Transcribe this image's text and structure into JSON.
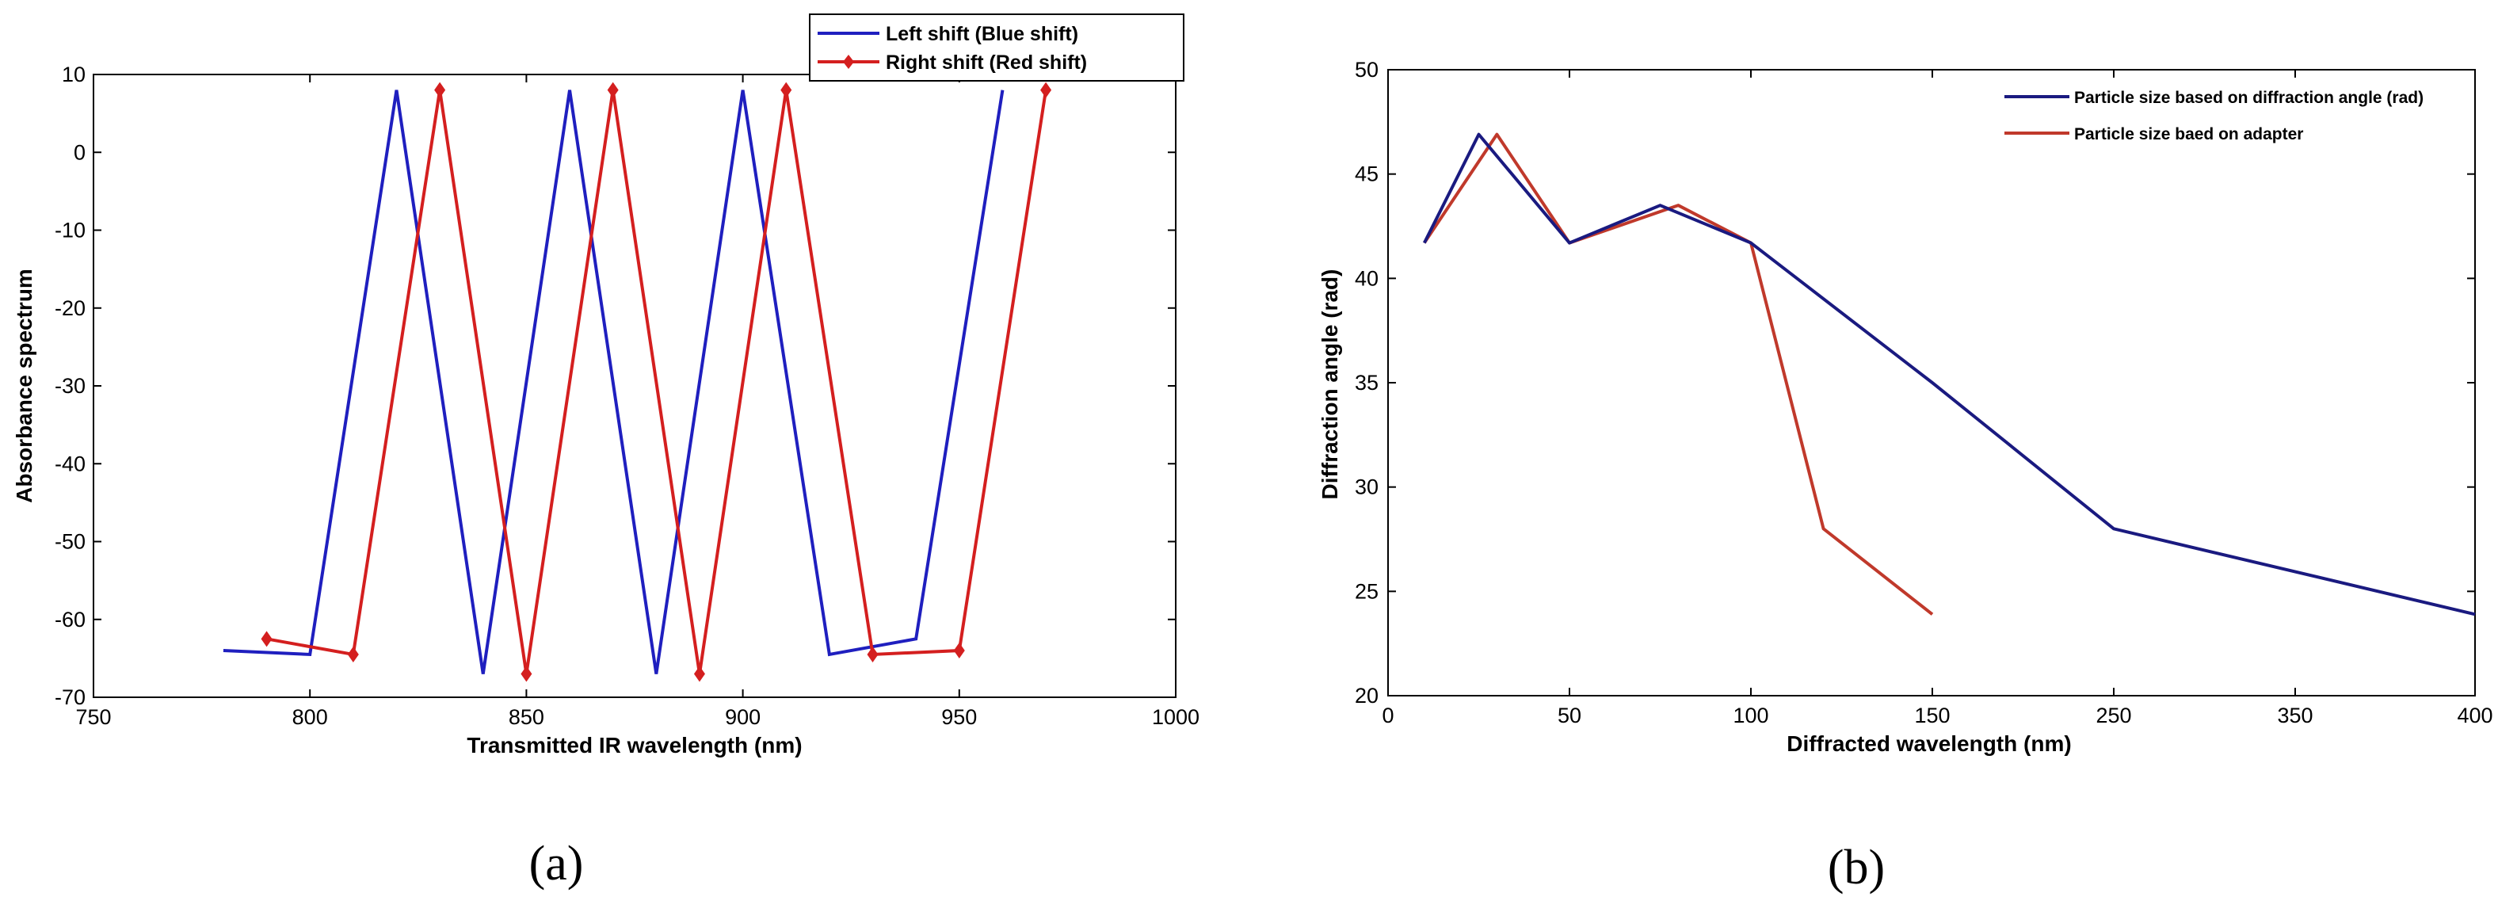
{
  "panels": {
    "a": "(a)",
    "b": "(b)"
  },
  "colors": {
    "blue": "#1f1fbf",
    "red": "#d41f1f",
    "navy": "#1a1a80",
    "brick": "#c0392b"
  },
  "chart_data": [
    {
      "type": "line",
      "title": "",
      "xlabel": "Transmitted IR wavelength (nm)",
      "ylabel": "Absorbance spectrum",
      "xlim": [
        750,
        1000
      ],
      "ylim": [
        -70,
        10
      ],
      "xticks": [
        750,
        800,
        850,
        900,
        950,
        1000
      ],
      "yticks": [
        -70,
        -60,
        -50,
        -40,
        -30,
        -20,
        -10,
        0,
        10
      ],
      "legend": "top-right",
      "series": [
        {
          "name": "Left shift (Blue shift)",
          "color": "#1f1fbf",
          "marker": "none",
          "x": [
            780,
            800,
            820,
            840,
            860,
            880,
            900,
            920,
            940,
            960
          ],
          "y": [
            -64,
            -64.5,
            8,
            -67,
            8,
            -67,
            8,
            -64.5,
            -62.5,
            8
          ]
        },
        {
          "name": "Right shift (Red shift)",
          "color": "#d41f1f",
          "marker": "diamond",
          "x": [
            790,
            810,
            830,
            850,
            870,
            890,
            910,
            930,
            950,
            970
          ],
          "y": [
            -62.5,
            -64.5,
            8,
            -67,
            8,
            -67,
            8,
            -64.5,
            -64,
            8
          ]
        }
      ]
    },
    {
      "type": "line",
      "title": "",
      "xlabel": "Diffracted wavelength (nm)",
      "ylabel": "Diffraction angle (rad)",
      "ylim": [
        20,
        50
      ],
      "xticks": [
        "0",
        "50",
        "100",
        "150",
        "250",
        "350",
        "400"
      ],
      "yticks": [
        20,
        25,
        30,
        35,
        40,
        45,
        50
      ],
      "legend": "top-right",
      "series": [
        {
          "name": "Particle size based on diffraction angle (rad)",
          "color": "#1a1a80",
          "x": [
            10,
            25,
            50,
            75,
            100,
            150,
            250,
            400
          ],
          "y": [
            41.7,
            46.9,
            41.7,
            43.5,
            41.7,
            35,
            28,
            23.9
          ]
        },
        {
          "name": "Particle size baed on adapter",
          "color": "#c0392b",
          "x": [
            10,
            30,
            50,
            80,
            100,
            120,
            150
          ],
          "y": [
            41.7,
            46.9,
            41.7,
            43.5,
            41.7,
            28,
            23.9
          ]
        }
      ]
    }
  ]
}
